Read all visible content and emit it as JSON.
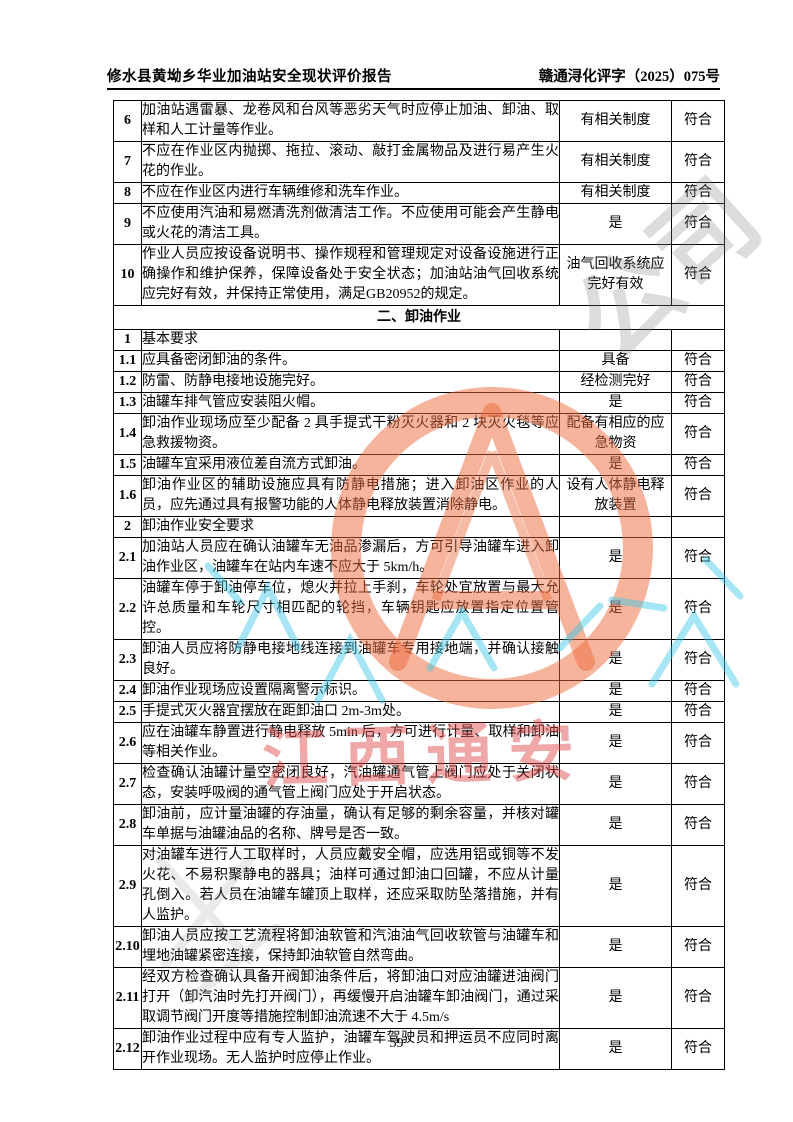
{
  "header": {
    "title_left": "修水县黄坳乡华业加油站安全现状评价报告",
    "doc_number_right": "赣通浔化评字（2025）075号"
  },
  "table": {
    "rows": [
      {
        "type": "item",
        "num": "6",
        "content": "加油站遇雷暴、龙卷风和台风等恶劣天气时应停止加油、卸油、取样和人工计量等作业。",
        "status": "有相关制度",
        "result": "符合"
      },
      {
        "type": "item",
        "num": "7",
        "content": "不应在作业区内抛掷、拖拉、滚动、敲打金属物品及进行易产生火花的作业。",
        "status": "有相关制度",
        "result": "符合"
      },
      {
        "type": "item",
        "num": "8",
        "content": "不应在作业区内进行车辆维修和洗车作业。",
        "status": "有相关制度",
        "result": "符合"
      },
      {
        "type": "item",
        "num": "9",
        "content": "不应使用汽油和易燃清洗剂做清洁工作。不应使用可能会产生静电或火花的清洁工具。",
        "status": "是",
        "result": "符合"
      },
      {
        "type": "item",
        "num": "10",
        "content": "作业人员应按设备说明书、操作规程和管理规定对设备设施进行正确操作和维护保养，保障设备处于安全状态；加油站油气回收系统应完好有效，并保持正常使用，满足GB20952的规定。",
        "status": "油气回收系统应完好有效",
        "result": "符合"
      },
      {
        "type": "section",
        "content": "二、卸油作业"
      },
      {
        "type": "item",
        "num": "1",
        "content": "基本要求",
        "status": "",
        "result": ""
      },
      {
        "type": "item",
        "num": "1.1",
        "content": "应具备密闭卸油的条件。",
        "status": "具备",
        "result": "符合"
      },
      {
        "type": "item",
        "num": "1.2",
        "content": "防雷、防静电接地设施完好。",
        "status": "经检测完好",
        "result": "符合"
      },
      {
        "type": "item",
        "num": "1.3",
        "content": "油罐车排气管应安装阻火帽。",
        "status": "是",
        "result": "符合"
      },
      {
        "type": "item",
        "num": "1.4",
        "content": "卸油作业现场应至少配备 2 具手提式干粉灭火器和 2 块灭火毯等应急救援物资。",
        "status": "配备有相应的应急物资",
        "result": "符合"
      },
      {
        "type": "item",
        "num": "1.5",
        "content": "油罐车宜采用液位差自流方式卸油。",
        "status": "是",
        "result": "符合"
      },
      {
        "type": "item",
        "num": "1.6",
        "content": "卸油作业区的辅助设施应具有防静电措施；进入卸油区作业的人员，应先通过具有报警功能的人体静电释放装置消除静电。",
        "status": "设有人体静电释放装置",
        "result": "符合"
      },
      {
        "type": "item",
        "num": "2",
        "content": "卸油作业安全要求",
        "status": "",
        "result": ""
      },
      {
        "type": "item",
        "num": "2.1",
        "content": "加油站人员应在确认油罐车无油品渗漏后，方可引导油罐车进入卸油作业区，油罐车在站内车速不应大于 5km/h。",
        "status": "是",
        "result": "符合"
      },
      {
        "type": "item",
        "num": "2.2",
        "content": "油罐车停于卸油停车位，熄火并拉上手刹，车轮处宜放置与最大允许总质量和车轮尺寸相匹配的轮挡，车辆钥匙应放置指定位置管控。",
        "status": "是",
        "result": "符合"
      },
      {
        "type": "item",
        "num": "2.3",
        "content": "卸油人员应将防静电接地线连接到油罐车专用接地端，并确认接触良好。",
        "status": "是",
        "result": "符合"
      },
      {
        "type": "item",
        "num": "2.4",
        "content": "卸油作业现场应设置隔离警示标识。",
        "status": "是",
        "result": "符合"
      },
      {
        "type": "item",
        "num": "2.5",
        "content": "手提式灭火器宜摆放在距卸油口 2m-3m处。",
        "status": "是",
        "result": "符合"
      },
      {
        "type": "item",
        "num": "2.6",
        "content": "应在油罐车静置进行静电释放 5min 后，方可进行计量、取样和卸油等相关作业。",
        "status": "是",
        "result": "符合"
      },
      {
        "type": "item",
        "num": "2.7",
        "content": "检查确认油罐计量空密闭良好，汽油罐通气管上阀门应处于关闭状态，安装呼吸阀的通气管上阀门应处于开启状态。",
        "status": "是",
        "result": "符合"
      },
      {
        "type": "item",
        "num": "2.8",
        "content": "卸油前，应计量油罐的存油量，确认有足够的剩余容量，并核对罐车单据与油罐油品的名称、牌号是否一致。",
        "status": "是",
        "result": "符合"
      },
      {
        "type": "item",
        "num": "2.9",
        "content": "对油罐车进行人工取样时，人员应戴安全帽，应选用铝或铜等不发火花、不易积聚静电的器具；油样可通过卸油口回罐，不应从计量孔倒入。若人员在油罐车罐顶上取样，还应采取防坠落措施，并有人监护。",
        "status": "是",
        "result": "符合"
      },
      {
        "type": "item",
        "num": "2.10",
        "content": "卸油人员应按工艺流程将卸油软管和汽油油气回收软管与油罐车和埋地油罐紧密连接，保持卸油软管自然弯曲。",
        "status": "是",
        "result": "符合"
      },
      {
        "type": "item",
        "num": "2.11",
        "content": "经双方检查确认具备开阀卸油条件后，将卸油口对应油罐进油阀门打开（卸汽油时先打开阀门），再缓慢开启油罐车卸油阀门，通过采取调节阀门开度等措施控制卸油流速不大于 4.5m/s",
        "status": "是",
        "result": "符合"
      },
      {
        "type": "item",
        "num": "2.12",
        "content": "卸油作业过程中应有专人监护，油罐车驾驶员和押运员不应同时离开作业现场。无人监护时应停止作业。",
        "status": "是",
        "result": "符合"
      }
    ]
  },
  "footer": {
    "page_number": "59"
  },
  "watermark": {
    "red_text": "江西通安",
    "gray_text": "公司",
    "colors": {
      "ring_orange": "#ED6A3C",
      "seal_red": "#DE4848",
      "gray": "#828282",
      "cyan": "#3CC9E8"
    }
  }
}
